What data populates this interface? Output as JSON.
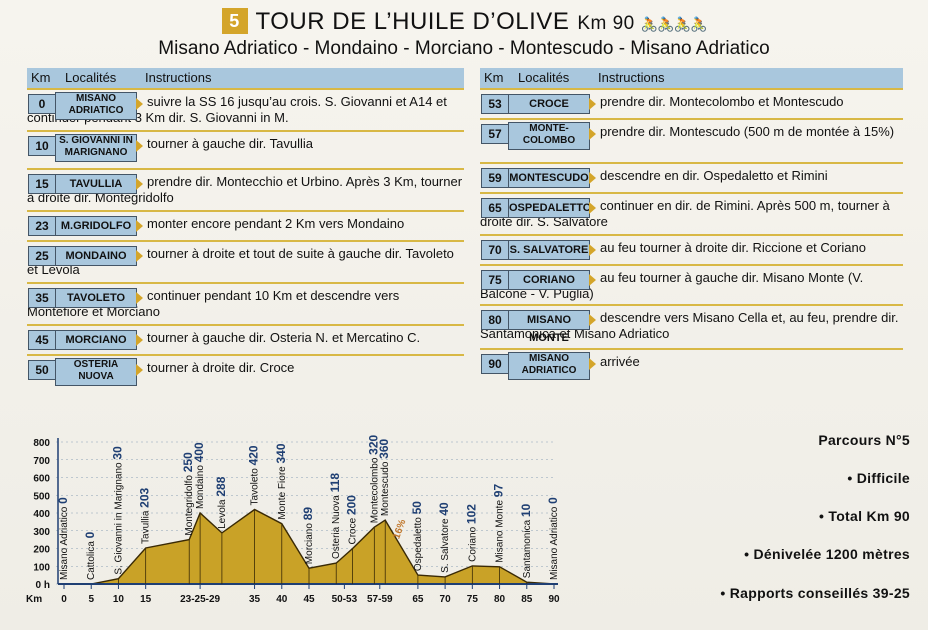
{
  "header": {
    "number": "5",
    "title": "TOUR DE L’HUILE D’OLIVE",
    "km": "Km 90",
    "subtitle": "Misano Adriatico - Mondaino - Morciano - Montescudo - Misano Adriatico",
    "bikes": "🚴🚴🚴🚴"
  },
  "columns": {
    "km": "Km",
    "loc": "Localités",
    "instr": "Instructions"
  },
  "left_rows": [
    {
      "km": "0",
      "loc": "MISANO ADRIATICO",
      "text": "suivre la SS 16 jusqu’au crois. S. Giovanni et A14 et continuer pendant 3 Km dir. S. Giovanni in M."
    },
    {
      "km": "10",
      "loc": "S. GIOVANNI IN MARIGNANO",
      "text": "tourner à gauche dir. Tavullia"
    },
    {
      "km": "15",
      "loc": "TAVULLIA",
      "text": "prendre dir. Montecchio et Urbino. Après 3 Km, tourner à droite dir. Montegridolfo"
    },
    {
      "km": "23",
      "loc": "M.GRIDOLFO",
      "text": "monter encore pendant 2 Km vers Mondaino"
    },
    {
      "km": "25",
      "loc": "MONDAINO",
      "text": "tourner à droite et tout de suite à gauche dir. Tavoleto et Levola"
    },
    {
      "km": "35",
      "loc": "TAVOLETO",
      "text": "continuer pendant 10 Km et descendre vers Montefiore et Morciano"
    },
    {
      "km": "45",
      "loc": "MORCIANO",
      "text": "tourner à gauche dir. Osteria N. et Mercatino C."
    },
    {
      "km": "50",
      "loc": "OSTERIA NUOVA",
      "text": "tourner à droite dir. Croce"
    }
  ],
  "right_rows": [
    {
      "km": "53",
      "loc": "CROCE",
      "text": "prendre dir. Montecolombo et Montescudo"
    },
    {
      "km": "57",
      "loc": "MONTE-COLOMBO",
      "text": "prendre dir. Montescudo (500 m de montée à 15%)"
    },
    {
      "km": "59",
      "loc": "MONTESCUDO",
      "text": "descendre en dir. Ospedaletto et Rimini"
    },
    {
      "km": "65",
      "loc": "OSPEDALETTO",
      "text": "continuer en dir. de Rimini. Après 500 m, tourner à droite dir. S. Salvatore"
    },
    {
      "km": "70",
      "loc": "S. SALVATORE",
      "text": "au feu tourner à droite dir. Riccione et Coriano"
    },
    {
      "km": "75",
      "loc": "CORIANO",
      "text": "au feu tourner à gauche dir. Misano Monte (V. Balcone - V. Puglia)"
    },
    {
      "km": "80",
      "loc": "MISANO MONTE",
      "text": "descendre vers Misano Cella et, au feu, prendre dir. Santamonica et Misano Adriatico"
    },
    {
      "km": "90",
      "loc": "MISANO ADRIATICO",
      "text": "arrivée"
    }
  ],
  "info": {
    "parcours": "Parcours N°5",
    "difficulty": "• Difficile",
    "total": "• Total Km 90",
    "elevation": "• Dénivelée 1200 mètres",
    "gears": "• Rapports conseillés 39-25"
  },
  "chart_data": {
    "type": "area",
    "y_ticks": [
      "800",
      "700",
      "600",
      "500",
      "400",
      "300",
      "200",
      "100",
      "0 h"
    ],
    "ylim": [
      0,
      800
    ],
    "xlim": [
      0,
      90
    ],
    "x_unit": "Km",
    "x_ticks": [
      {
        "label": "0",
        "km": 0
      },
      {
        "label": "5",
        "km": 5
      },
      {
        "label": "10",
        "km": 10
      },
      {
        "label": "15",
        "km": 15
      },
      {
        "label": "23-25-29",
        "km": 25
      },
      {
        "label": "35",
        "km": 35
      },
      {
        "label": "40",
        "km": 40
      },
      {
        "label": "45",
        "km": 45
      },
      {
        "label": "50-53",
        "km": 51.5
      },
      {
        "label": "57-59",
        "km": 58
      },
      {
        "label": "65",
        "km": 65
      },
      {
        "label": "70",
        "km": 70
      },
      {
        "label": "75",
        "km": 75
      },
      {
        "label": "80",
        "km": 80
      },
      {
        "label": "85",
        "km": 85
      },
      {
        "label": "90",
        "km": 90
      }
    ],
    "profile": [
      [
        0,
        0
      ],
      [
        5,
        0
      ],
      [
        10,
        30
      ],
      [
        15,
        203
      ],
      [
        23,
        250
      ],
      [
        25,
        400
      ],
      [
        29,
        288
      ],
      [
        35,
        420
      ],
      [
        40,
        340
      ],
      [
        45,
        89
      ],
      [
        50,
        118
      ],
      [
        53,
        200
      ],
      [
        57,
        320
      ],
      [
        59,
        360
      ],
      [
        65,
        50
      ],
      [
        70,
        40
      ],
      [
        75,
        102
      ],
      [
        80,
        97
      ],
      [
        85,
        10
      ],
      [
        90,
        0
      ]
    ],
    "places": [
      {
        "name": "Misano Adriatico",
        "alt": "0",
        "km": 0
      },
      {
        "name": "Cattolica",
        "alt": "0",
        "km": 5
      },
      {
        "name": "S. Giovanni in Marignano",
        "alt": "30",
        "km": 10
      },
      {
        "name": "Tavullia",
        "alt": "203",
        "km": 15
      },
      {
        "name": "Montegridolfo",
        "alt": "250",
        "km": 23
      },
      {
        "name": "Mondaino",
        "alt": "400",
        "km": 25
      },
      {
        "name": "Levola",
        "alt": "288",
        "km": 29
      },
      {
        "name": "Tavoleto",
        "alt": "420",
        "km": 35
      },
      {
        "name": "Monte Fiore",
        "alt": "340",
        "km": 40
      },
      {
        "name": "Morciano",
        "alt": "89",
        "km": 45
      },
      {
        "name": "Osteria Nuova",
        "alt": "118",
        "km": 50
      },
      {
        "name": "Croce",
        "alt": "200",
        "km": 53
      },
      {
        "name": "Montecolombo",
        "alt": "320",
        "km": 57
      },
      {
        "name": "Montescudo",
        "alt": "360",
        "km": 59
      },
      {
        "name": "Ospedaletto",
        "alt": "50",
        "km": 65
      },
      {
        "name": "S. Salvatore",
        "alt": "40",
        "km": 70
      },
      {
        "name": "Coriano",
        "alt": "102",
        "km": 75
      },
      {
        "name": "Misano Monte",
        "alt": "97",
        "km": 80
      },
      {
        "name": "Santamonica",
        "alt": "10",
        "km": 85
      },
      {
        "name": "Misano Adriatico",
        "alt": "0",
        "km": 90
      }
    ],
    "gradient_note": {
      "label": "16%",
      "km": 61.5
    },
    "colors": {
      "fill": "#c9a227",
      "label": "#1f3f73",
      "accent": "#c0762a"
    }
  }
}
